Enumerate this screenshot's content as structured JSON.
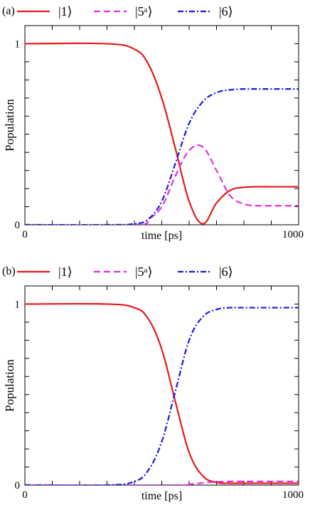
{
  "chart_data": [
    {
      "panel": "(a)",
      "type": "line",
      "xlabel": "time [ps]",
      "ylabel": "Population",
      "xlim": [
        0,
        1000
      ],
      "ylim": [
        0,
        1.1
      ],
      "x_tick_labels": [
        "0",
        "1000"
      ],
      "y_tick_labels": [
        "0",
        "1"
      ],
      "legend_position": "top",
      "series": [
        {
          "name": "|1⟩",
          "color": "#e41a1c",
          "style": "solid",
          "x": [
            0,
            300,
            400,
            450,
            500,
            550,
            600,
            650,
            700,
            750,
            800,
            850,
            900,
            950,
            1000
          ],
          "y": [
            1.0,
            1.0,
            0.97,
            0.89,
            0.7,
            0.42,
            0.13,
            0.005,
            0.12,
            0.19,
            0.207,
            0.21,
            0.21,
            0.21,
            0.21
          ]
        },
        {
          "name": "|5ᵃ⟩",
          "color": "#e22de2",
          "style": "dashed",
          "x": [
            0,
            400,
            450,
            500,
            550,
            600,
            650,
            700,
            750,
            800,
            850,
            900,
            950,
            1000
          ],
          "y": [
            0,
            0.0,
            0.03,
            0.1,
            0.27,
            0.41,
            0.43,
            0.3,
            0.16,
            0.115,
            0.105,
            0.105,
            0.105,
            0.105
          ]
        },
        {
          "name": "|6⟩",
          "color": "#1a1ae0",
          "style": "dashdot",
          "x": [
            0,
            300,
            400,
            450,
            500,
            550,
            600,
            650,
            700,
            750,
            800,
            850,
            900,
            950,
            1000
          ],
          "y": [
            0,
            0.0,
            0.005,
            0.03,
            0.13,
            0.34,
            0.56,
            0.68,
            0.73,
            0.745,
            0.75,
            0.75,
            0.75,
            0.75,
            0.75
          ]
        }
      ]
    },
    {
      "panel": "(b)",
      "type": "line",
      "xlabel": "time [ps]",
      "ylabel": "Population",
      "xlim": [
        0,
        1000
      ],
      "ylim": [
        0,
        1.1
      ],
      "x_tick_labels": [
        "0",
        "1000"
      ],
      "y_tick_labels": [
        "0",
        "1"
      ],
      "legend_position": "top",
      "series": [
        {
          "name": "|1⟩",
          "color": "#e41a1c",
          "style": "solid",
          "x": [
            0,
            300,
            400,
            450,
            500,
            550,
            600,
            650,
            700,
            750,
            800,
            1000
          ],
          "y": [
            1.0,
            1.0,
            0.98,
            0.92,
            0.75,
            0.46,
            0.18,
            0.05,
            0.015,
            0.01,
            0.01,
            0.01
          ]
        },
        {
          "name": "|5ᵃ⟩",
          "color": "#e22de2",
          "style": "dashed",
          "x": [
            0,
            550,
            600,
            650,
            700,
            750,
            800,
            900,
            1000
          ],
          "y": [
            0,
            0.0,
            0.005,
            0.012,
            0.018,
            0.02,
            0.02,
            0.02,
            0.02
          ]
        },
        {
          "name": "|6⟩",
          "color": "#1a1ae0",
          "style": "dashdot",
          "x": [
            0,
            300,
            400,
            450,
            500,
            550,
            600,
            650,
            700,
            750,
            800,
            900,
            1000
          ],
          "y": [
            0,
            0.0,
            0.02,
            0.08,
            0.24,
            0.52,
            0.8,
            0.93,
            0.97,
            0.98,
            0.98,
            0.98,
            0.98
          ]
        }
      ]
    }
  ]
}
